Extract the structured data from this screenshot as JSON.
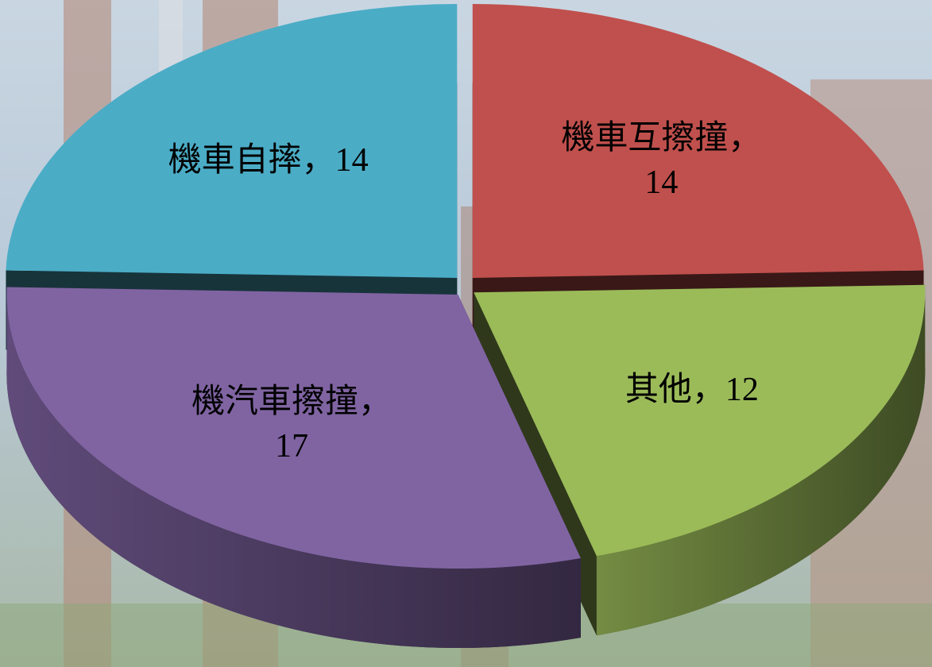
{
  "chart_data": {
    "type": "pie",
    "values": [
      14,
      12,
      17,
      14
    ],
    "value_labels": [
      "機車互擦撞，14",
      "其他，12",
      "機汽車擦撞，17",
      "機車自摔，14"
    ],
    "colors": [
      "#c0504d",
      "#9bbb59",
      "#8064a2",
      "#4bacc6"
    ]
  }
}
